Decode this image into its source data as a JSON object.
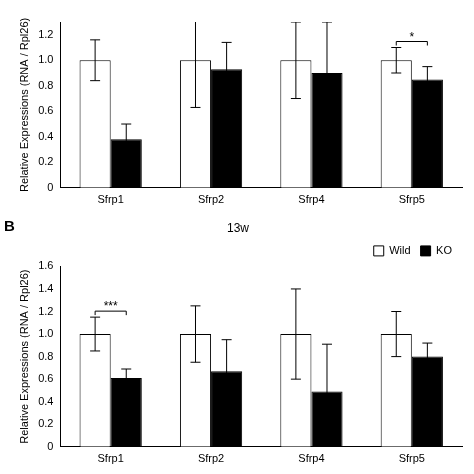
{
  "chart_data": [
    {
      "type": "bar",
      "y_label": "Relative Expressions (RNA / Rpl26)",
      "categories": [
        "Sfrp1",
        "Sfrp2",
        "Sfrp4",
        "Sfrp5"
      ],
      "series": [
        {
          "color": "#ffffff",
          "values": [
            1.0,
            1.0,
            1.0,
            1.0
          ],
          "errors": [
            0.16,
            0.37,
            0.3,
            0.1
          ]
        },
        {
          "color": "#000000",
          "values": [
            0.38,
            0.93,
            0.9,
            0.85
          ],
          "errors": [
            0.12,
            0.21,
            0.4,
            0.1
          ]
        }
      ],
      "ylim": [
        0,
        1.3
      ],
      "yticks": [
        0,
        0.2,
        0.4,
        0.6,
        0.8,
        {
          "value": 1,
          "label": "1.0"
        },
        1.2
      ],
      "grid": false,
      "annotations": [
        {
          "category": "Sfrp5",
          "label": "*"
        }
      ]
    },
    {
      "type": "bar",
      "panel": "B",
      "title": "13w",
      "y_label": "Relative Expressions (RNA / Rpl26)",
      "categories": [
        "Sfrp1",
        "Sfrp2",
        "Sfrp4",
        "Sfrp5"
      ],
      "series": [
        {
          "name": "Wild",
          "color": "#ffffff",
          "values": [
            1.0,
            1.0,
            1.0,
            1.0
          ],
          "errors": [
            0.15,
            0.25,
            0.4,
            0.2
          ]
        },
        {
          "name": "KO",
          "color": "#000000",
          "values": [
            0.61,
            0.67,
            0.49,
            0.8
          ],
          "errors": [
            0.08,
            0.28,
            0.42,
            0.12
          ]
        }
      ],
      "ylim": [
        0,
        1.6
      ],
      "yticks": [
        0,
        0.2,
        0.4,
        0.6,
        0.8,
        {
          "value": 1,
          "label": "1.0"
        },
        1.2,
        1.4,
        1.6
      ],
      "grid": false,
      "legend": "upper right",
      "annotations": [
        {
          "category": "Sfrp1",
          "label": "***"
        }
      ]
    }
  ]
}
